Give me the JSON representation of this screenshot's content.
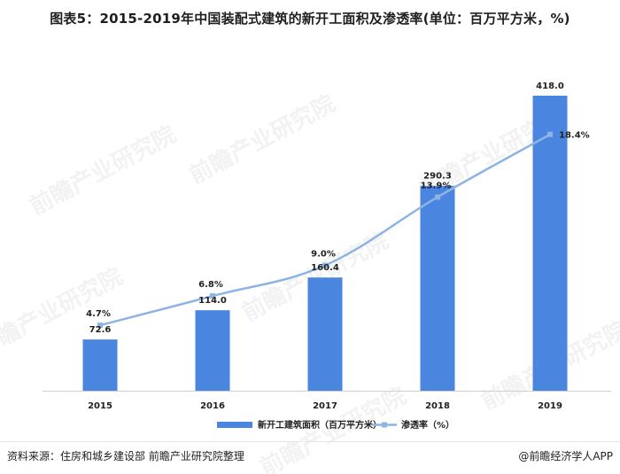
{
  "title": "图表5：2015-2019年中国装配式建筑的新开工面积及渗透率(单位：百万平方米，%)",
  "source": "资料来源：住房和城乡建设部 前瞻产业研究院整理",
  "brand": "@前瞻经济学人APP",
  "watermark": "前瞻产业研究院",
  "colors": {
    "bar": "#4a86e0",
    "line": "#8eb4e3",
    "text": "#1f1f1f"
  },
  "chart_data": {
    "type": "bar",
    "categories": [
      "2015",
      "2016",
      "2017",
      "2018",
      "2019"
    ],
    "series": [
      {
        "name": "新开工建筑面积（百万平方米）",
        "type": "bar",
        "values": [
          72.6,
          114.0,
          160.4,
          290.3,
          418.0
        ],
        "labels": [
          "72.6",
          "114.0",
          "160.4",
          "290.3",
          "418.0"
        ]
      },
      {
        "name": "渗透率（%）",
        "type": "line",
        "values": [
          4.7,
          6.8,
          9.0,
          13.9,
          18.4
        ],
        "labels": [
          "4.7%",
          "6.8%",
          "9.0%",
          "13.9%",
          "18.4%"
        ]
      }
    ],
    "ylim": [
      0,
      418
    ],
    "y2lim": [
      0,
      21.5
    ],
    "legend": "bottom",
    "grid": false
  }
}
